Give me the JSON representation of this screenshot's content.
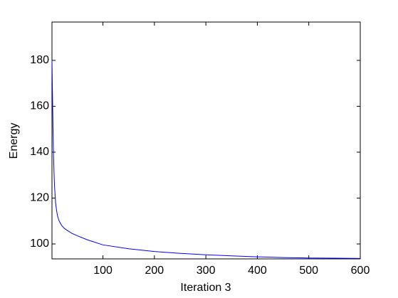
{
  "chart_data": {
    "type": "line",
    "xlabel": "Iteration 3",
    "ylabel": "Energy",
    "x": [
      1,
      2,
      3,
      4,
      5,
      6,
      8,
      10,
      12,
      15,
      20,
      25,
      30,
      40,
      50,
      70,
      100,
      150,
      200,
      250,
      300,
      350,
      400,
      450,
      500,
      550,
      600
    ],
    "values": [
      180,
      165,
      150,
      139,
      131,
      125,
      118,
      114.5,
      112,
      110,
      108,
      106.8,
      106,
      104.6,
      103.6,
      101.8,
      99.6,
      97.9,
      96.7,
      95.9,
      95.3,
      94.8,
      94.4,
      94.1,
      93.9,
      93.8,
      93.7
    ],
    "color": "#0000ff",
    "xlim": [
      1,
      600
    ],
    "xticks": [
      100,
      200,
      300,
      400,
      500,
      600
    ],
    "ylim": [
      93.5,
      196.7
    ],
    "yticks": [
      100,
      120,
      140,
      160,
      180
    ],
    "grid": false
  }
}
